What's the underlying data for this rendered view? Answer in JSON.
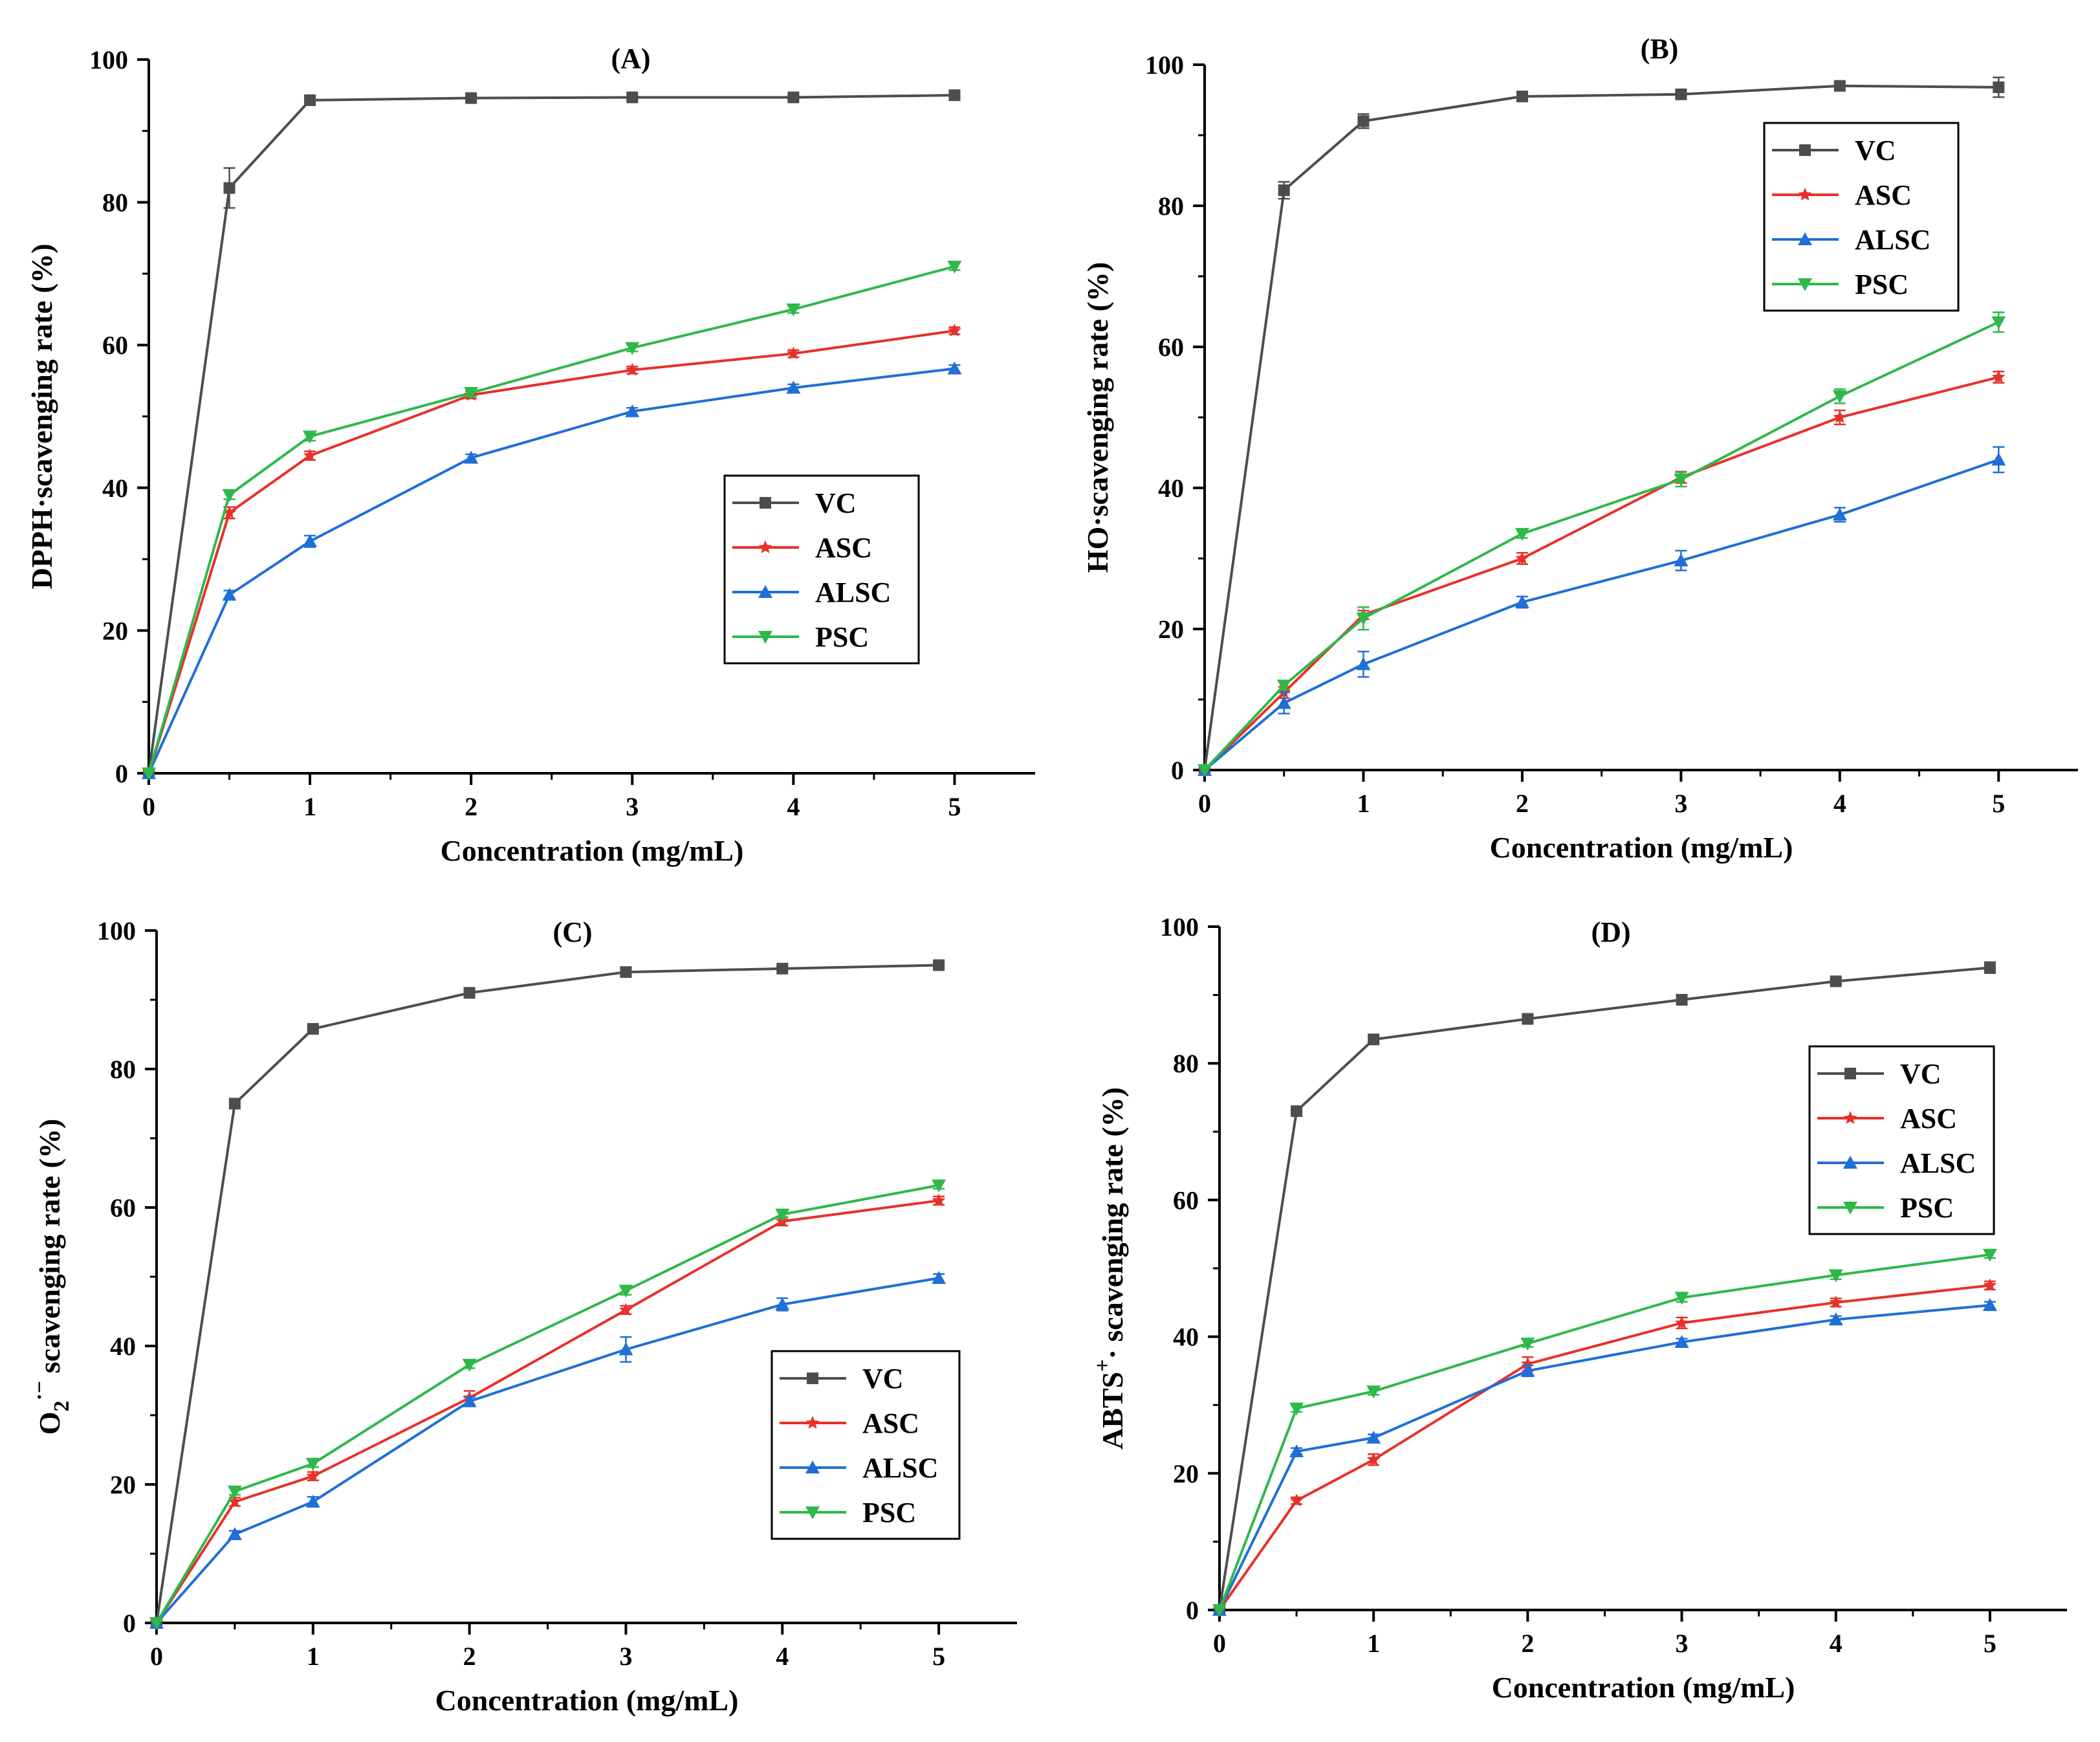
{
  "chart_data": [
    {
      "type": "line",
      "panel": "A",
      "title": "(A)",
      "xlabel": "Concentration (mg/mL)",
      "ylabel": "DPPH·scavenging rate (%)",
      "x": [
        0,
        0.5,
        1,
        2,
        3,
        4,
        5
      ],
      "xticks": [
        0,
        1,
        2,
        3,
        4,
        5
      ],
      "yticks": [
        0,
        20,
        40,
        60,
        80,
        100
      ],
      "xlim": [
        0,
        5.5
      ],
      "ylim": [
        0,
        100
      ],
      "legend_position": "center-right",
      "series": [
        {
          "name": "VC",
          "values": [
            0,
            82,
            94.3,
            94.6,
            94.7,
            94.7,
            95
          ],
          "errors": [
            0,
            2.8,
            0.4,
            0.3,
            0.3,
            0.3,
            0.4
          ]
        },
        {
          "name": "ASC",
          "values": [
            0,
            36.5,
            44.5,
            53,
            56.5,
            58.8,
            62
          ],
          "errors": [
            0,
            0.8,
            0.6,
            0.5,
            0.5,
            0.5,
            0.5
          ]
        },
        {
          "name": "ALSC",
          "values": [
            0,
            25,
            32.5,
            44.2,
            50.7,
            54,
            56.7
          ],
          "errors": [
            0,
            0.6,
            0.8,
            0.5,
            0.5,
            0.5,
            0.5
          ]
        },
        {
          "name": "PSC",
          "values": [
            0,
            39,
            47.2,
            53.3,
            59.6,
            65,
            71
          ],
          "errors": [
            0,
            0.6,
            0.6,
            0.5,
            0.5,
            0.5,
            0.5
          ]
        }
      ]
    },
    {
      "type": "line",
      "panel": "B",
      "title": "(B)",
      "xlabel": "Concentration (mg/mL)",
      "ylabel": "HO·scavenging rate (%)",
      "x": [
        0,
        0.5,
        1,
        2,
        3,
        4,
        5
      ],
      "xticks": [
        0,
        1,
        2,
        3,
        4,
        5
      ],
      "yticks": [
        0,
        20,
        40,
        60,
        80,
        100
      ],
      "xlim": [
        0,
        5.5
      ],
      "ylim": [
        0,
        100
      ],
      "legend_position": "top-right",
      "series": [
        {
          "name": "VC",
          "values": [
            0,
            82.2,
            92,
            95.5,
            95.8,
            97,
            96.8
          ],
          "errors": [
            0,
            1.2,
            1,
            0.4,
            0.6,
            0.6,
            1.4
          ]
        },
        {
          "name": "ASC",
          "values": [
            0,
            11,
            22,
            30,
            41.5,
            50,
            55.7
          ],
          "errors": [
            0,
            0.8,
            0.6,
            0.8,
            0.8,
            1,
            0.8
          ]
        },
        {
          "name": "ALSC",
          "values": [
            0,
            9.5,
            15,
            23.8,
            29.7,
            36.2,
            44
          ],
          "errors": [
            0,
            1.5,
            1.8,
            0.8,
            1.4,
            1,
            1.8
          ]
        },
        {
          "name": "PSC",
          "values": [
            0,
            12,
            21.5,
            33.5,
            41.2,
            53,
            63.5
          ],
          "errors": [
            0,
            0.6,
            1.6,
            0.6,
            1,
            1,
            1.4
          ]
        }
      ]
    },
    {
      "type": "line",
      "panel": "C",
      "title": "(C)",
      "xlabel": "Concentration (mg/mL)",
      "ylabel_main": "O",
      "ylabel_sub": "2",
      "ylabel_sup": "·−",
      "ylabel_rest": " scavenging rate (%)",
      "x": [
        0,
        0.5,
        1,
        2,
        3,
        4,
        5
      ],
      "xticks": [
        0,
        1,
        2,
        3,
        4,
        5
      ],
      "yticks": [
        0,
        20,
        40,
        60,
        80,
        100
      ],
      "xlim": [
        0,
        5.5
      ],
      "ylim": [
        0,
        100
      ],
      "legend_position": "center-right",
      "series": [
        {
          "name": "VC",
          "values": [
            0,
            75,
            85.8,
            91,
            94,
            94.5,
            95
          ],
          "errors": [
            0,
            0.5,
            0.4,
            0.4,
            0.4,
            0.3,
            0.4
          ]
        },
        {
          "name": "ASC",
          "values": [
            0,
            17.5,
            21.2,
            32.5,
            45.2,
            58,
            61
          ],
          "errors": [
            0,
            0.6,
            0.6,
            1,
            0.6,
            0.6,
            0.6
          ]
        },
        {
          "name": "ALSC",
          "values": [
            0,
            12.8,
            17.5,
            32,
            39.5,
            46,
            49.8
          ],
          "errors": [
            0,
            0.5,
            0.7,
            0.6,
            1.8,
            0.9,
            0.6
          ]
        },
        {
          "name": "PSC",
          "values": [
            0,
            19,
            23,
            37.3,
            48,
            59,
            63.2
          ],
          "errors": [
            0,
            0.5,
            0.5,
            0.5,
            0.6,
            0.5,
            0.5
          ]
        }
      ]
    },
    {
      "type": "line",
      "panel": "D",
      "title": "(D)",
      "xlabel": "Concentration (mg/mL)",
      "ylabel_main": "ABTS",
      "ylabel_sup": "+",
      "ylabel_rest": "· scavenging rate (%)",
      "x": [
        0,
        0.5,
        1,
        2,
        3,
        4,
        5
      ],
      "xticks": [
        0,
        1,
        2,
        3,
        4,
        5
      ],
      "yticks": [
        0,
        20,
        40,
        60,
        80,
        100
      ],
      "xlim": [
        0,
        5.5
      ],
      "ylim": [
        0,
        100
      ],
      "legend_position": "top-right",
      "series": [
        {
          "name": "VC",
          "values": [
            0,
            73,
            83.5,
            86.5,
            89.3,
            92,
            94
          ],
          "errors": [
            0,
            0.6,
            0.4,
            0.6,
            0.5,
            0.4,
            0.8
          ]
        },
        {
          "name": "ASC",
          "values": [
            0,
            16,
            22,
            36,
            42,
            45,
            47.5
          ],
          "errors": [
            0,
            0.5,
            0.8,
            1,
            0.8,
            0.6,
            0.6
          ]
        },
        {
          "name": "ALSC",
          "values": [
            0,
            23.2,
            25.2,
            35,
            39.2,
            42.5,
            44.6
          ],
          "errors": [
            0,
            0.5,
            0.5,
            0.8,
            0.5,
            0.5,
            0.5
          ]
        },
        {
          "name": "PSC",
          "values": [
            0,
            29.5,
            32,
            39,
            45.7,
            49,
            52
          ],
          "errors": [
            0,
            0.5,
            0.5,
            0.5,
            0.6,
            0.6,
            0.5
          ]
        }
      ]
    }
  ],
  "colors": {
    "VC": "#4d4d4d",
    "ASC": "#e8302a",
    "ALSC": "#1f6fd6",
    "PSC": "#2fb84a"
  },
  "markers": {
    "VC": "square",
    "ASC": "star",
    "ALSC": "triangle-up",
    "PSC": "triangle-down"
  }
}
